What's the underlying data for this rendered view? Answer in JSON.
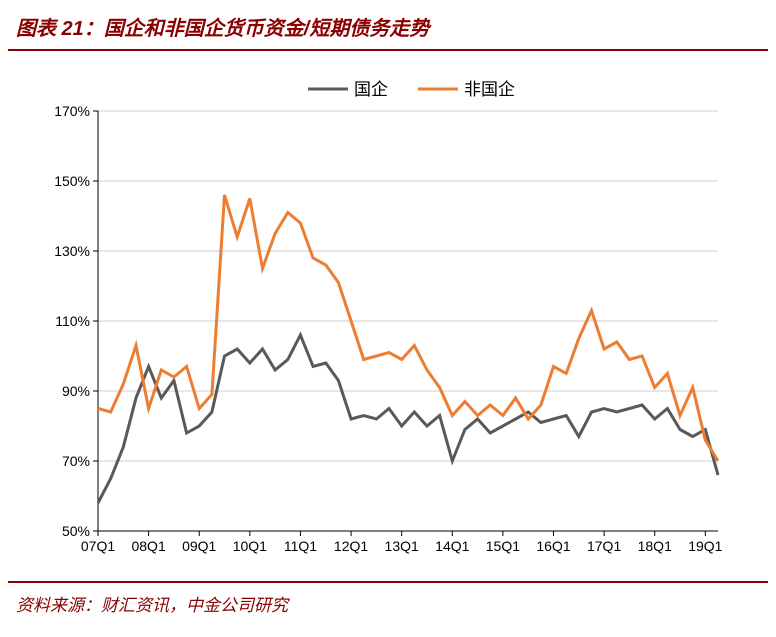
{
  "title_prefix": "图表 21：",
  "title_text": "国企和非国企货币资金/短期债务走势",
  "title_color": "#8b0000",
  "title_fontsize": 20,
  "divider_color": "#8b0000",
  "source_label": "资料来源：",
  "source_text": "财汇资讯，中金公司研究",
  "source_color": "#8b0000",
  "source_fontsize": 17,
  "chart": {
    "type": "line",
    "background_color": "#ffffff",
    "grid_color": "#bfbfbf",
    "axis_color": "#000000",
    "ylim": [
      50,
      170
    ],
    "ytick_step": 20,
    "yticks": [
      50,
      70,
      90,
      110,
      130,
      150,
      170
    ],
    "ytick_suffix": "%",
    "x_categories": [
      "07Q1",
      "08Q1",
      "09Q1",
      "10Q1",
      "11Q1",
      "12Q1",
      "13Q1",
      "14Q1",
      "15Q1",
      "16Q1",
      "17Q1",
      "18Q1",
      "19Q1"
    ],
    "x_points_count": 50,
    "line_width": 3,
    "legend": {
      "position": "top-center",
      "items": [
        {
          "label": "国企",
          "color": "#595959"
        },
        {
          "label": "非国企",
          "color": "#ed7d31"
        }
      ]
    },
    "series": [
      {
        "name": "国企",
        "color": "#595959",
        "values": [
          58,
          65,
          74,
          88,
          97,
          88,
          93,
          78,
          80,
          84,
          100,
          102,
          98,
          102,
          96,
          99,
          106,
          97,
          98,
          93,
          82,
          83,
          82,
          85,
          80,
          84,
          80,
          83,
          70,
          79,
          82,
          78,
          80,
          82,
          84,
          81,
          82,
          83,
          77,
          84,
          85,
          84,
          85,
          86,
          82,
          85,
          79,
          77,
          79,
          66
        ]
      },
      {
        "name": "非国企",
        "color": "#ed7d31",
        "values": [
          85,
          84,
          92,
          103,
          85,
          96,
          94,
          97,
          85,
          89,
          146,
          134,
          145,
          125,
          135,
          141,
          138,
          128,
          126,
          121,
          110,
          99,
          100,
          101,
          99,
          103,
          96,
          91,
          83,
          87,
          83,
          86,
          83,
          88,
          82,
          86,
          97,
          95,
          105,
          113,
          102,
          104,
          99,
          100,
          91,
          95,
          83,
          91,
          76,
          70
        ]
      }
    ]
  }
}
